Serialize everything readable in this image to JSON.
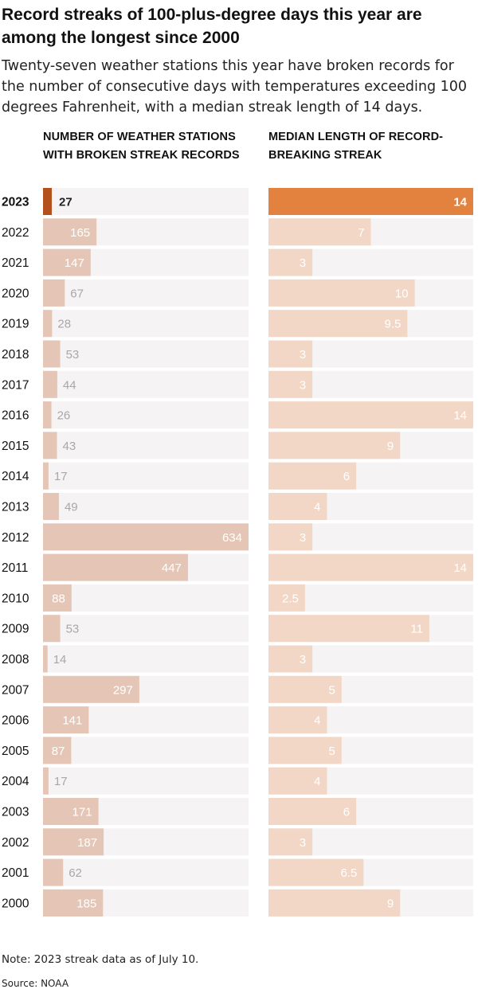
{
  "title": "Record streaks of 100-plus-degree days this year are among the longest since 2000",
  "subtitle": "Twenty-seven weather stations this year have broken records for the number of consecutive days with temperatures exceeding 100 degrees Fahrenheit, with a median streak length of 14 days.",
  "note": "Note: 2023 streak data as of July 10.",
  "source": "Source: NOAA",
  "colors": {
    "track": "#f5f3f4",
    "left_bar": "#e5c6b6",
    "right_bar": "#f3d7c6",
    "highlight_left": "#b4501c",
    "highlight_right": "#e3823f",
    "muted_label": "#a8a8a8",
    "inside_label": "#ffffff",
    "dark_label": "#222222"
  },
  "chart_data": [
    {
      "type": "bar",
      "orientation": "horizontal",
      "title": "NUMBER OF WEATHER STATIONS WITH BROKEN STREAK RECORDS",
      "categories": [
        "2023",
        "2022",
        "2021",
        "2020",
        "2019",
        "2018",
        "2017",
        "2016",
        "2015",
        "2014",
        "2013",
        "2012",
        "2011",
        "2010",
        "2009",
        "2008",
        "2007",
        "2006",
        "2005",
        "2004",
        "2003",
        "2002",
        "2001",
        "2000"
      ],
      "values": [
        27,
        165,
        147,
        67,
        28,
        53,
        44,
        26,
        43,
        17,
        49,
        634,
        447,
        88,
        53,
        14,
        297,
        141,
        87,
        17,
        171,
        187,
        62,
        185
      ],
      "value_labels": [
        "27",
        "165",
        "147",
        "67",
        "28",
        "53",
        "44",
        "26",
        "43",
        "17",
        "49",
        "634",
        "447",
        "88",
        "53",
        "14",
        "297",
        "141",
        "87",
        "17",
        "171",
        "187",
        "62",
        "185"
      ],
      "xlim": [
        0,
        634
      ],
      "highlight": "2023"
    },
    {
      "type": "bar",
      "orientation": "horizontal",
      "title": "MEDIAN LENGTH OF RECORD-BREAKING STREAK",
      "categories": [
        "2023",
        "2022",
        "2021",
        "2020",
        "2019",
        "2018",
        "2017",
        "2016",
        "2015",
        "2014",
        "2013",
        "2012",
        "2011",
        "2010",
        "2009",
        "2008",
        "2007",
        "2006",
        "2005",
        "2004",
        "2003",
        "2002",
        "2001",
        "2000"
      ],
      "values": [
        14,
        7,
        3,
        10,
        9.5,
        3,
        3,
        14,
        9,
        6,
        4,
        3,
        14,
        2.5,
        11,
        3,
        5,
        4,
        5,
        4,
        6,
        3,
        6.5,
        9
      ],
      "value_labels": [
        "14",
        "7",
        "3",
        "10",
        "9.5",
        "3",
        "3",
        "14",
        "9",
        "6",
        "4",
        "3",
        "14",
        "2.5",
        "11",
        "3",
        "5",
        "4",
        "5",
        "4",
        "6",
        "3",
        "6.5",
        "9"
      ],
      "xlim": [
        0,
        14
      ],
      "highlight": "2023"
    }
  ]
}
